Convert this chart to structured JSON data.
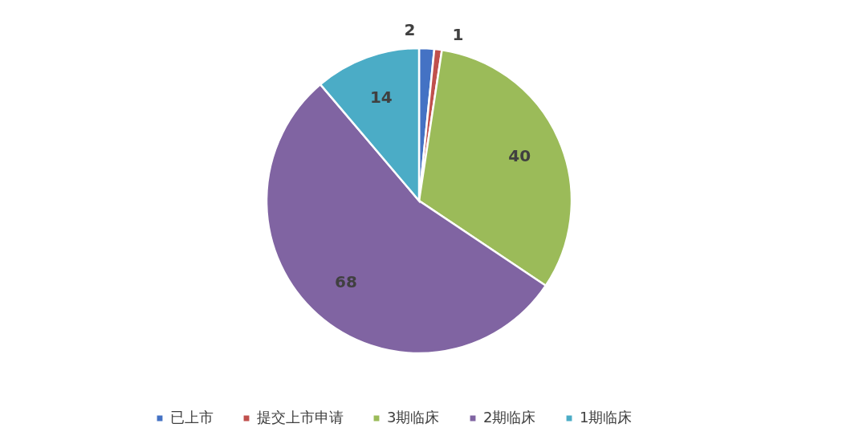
{
  "chart_data": {
    "type": "pie",
    "categories": [
      "已上市",
      "提交上市申请",
      "3期临床",
      "2期临床",
      "1期临床"
    ],
    "values": [
      2,
      1,
      40,
      68,
      14
    ],
    "colors": [
      "#4472c4",
      "#c0504d",
      "#9bbb59",
      "#8064a2",
      "#4bacc6"
    ],
    "data_labels": true,
    "legend": "bottom"
  }
}
